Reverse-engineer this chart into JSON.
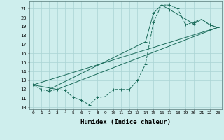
{
  "xlabel": "Humidex (Indice chaleur)",
  "bg_color": "#ceeeed",
  "grid_color": "#aad4d4",
  "line_color": "#1a6b5a",
  "xlim": [
    -0.5,
    23.5
  ],
  "ylim": [
    9.8,
    21.8
  ],
  "yticks": [
    10,
    11,
    12,
    13,
    14,
    15,
    16,
    17,
    18,
    19,
    20,
    21
  ],
  "xticks": [
    0,
    1,
    2,
    3,
    4,
    5,
    6,
    7,
    8,
    9,
    10,
    11,
    12,
    13,
    14,
    15,
    16,
    17,
    18,
    19,
    20,
    21,
    22,
    23
  ],
  "curve1_x": [
    0,
    1,
    2,
    3,
    4,
    5,
    6,
    7,
    8,
    9,
    10,
    11,
    12,
    13,
    14,
    15,
    16,
    17,
    18,
    19,
    20,
    21,
    22,
    23
  ],
  "curve1_y": [
    12.5,
    12.0,
    11.8,
    12.0,
    11.9,
    11.1,
    10.8,
    10.3,
    11.1,
    11.2,
    12.0,
    12.0,
    12.0,
    13.0,
    14.8,
    19.5,
    21.4,
    21.4,
    21.0,
    19.2,
    19.5,
    19.8,
    19.2,
    18.9
  ],
  "line2_x": [
    0,
    3,
    23
  ],
  "line2_y": [
    12.5,
    12.0,
    18.9
  ],
  "line3_x": [
    0,
    23
  ],
  "line3_y": [
    12.5,
    18.9
  ],
  "curve4_x": [
    2,
    14,
    15,
    16,
    17,
    20,
    21,
    22,
    23
  ],
  "curve4_y": [
    12.0,
    17.3,
    20.5,
    21.4,
    20.9,
    19.3,
    19.8,
    19.2,
    18.9
  ]
}
